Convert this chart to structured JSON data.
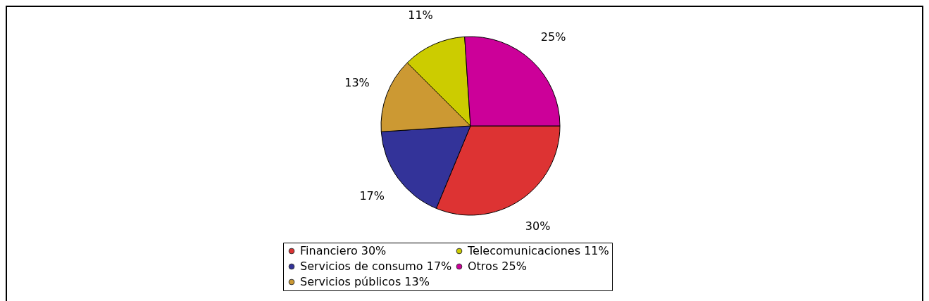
{
  "chart_data": {
    "type": "pie",
    "categories": [
      "Financiero",
      "Servicios de consumo",
      "Servicios públicos",
      "Telecomunicaciones",
      "Otros"
    ],
    "values": [
      30,
      17,
      13,
      11,
      25
    ],
    "value_labels": [
      "30%",
      "17%",
      "13%",
      "11%",
      "25%"
    ],
    "colors": [
      "#dd3333",
      "#333399",
      "#cc9933",
      "#cccc00",
      "#cc0099"
    ],
    "legend": "bottom"
  }
}
